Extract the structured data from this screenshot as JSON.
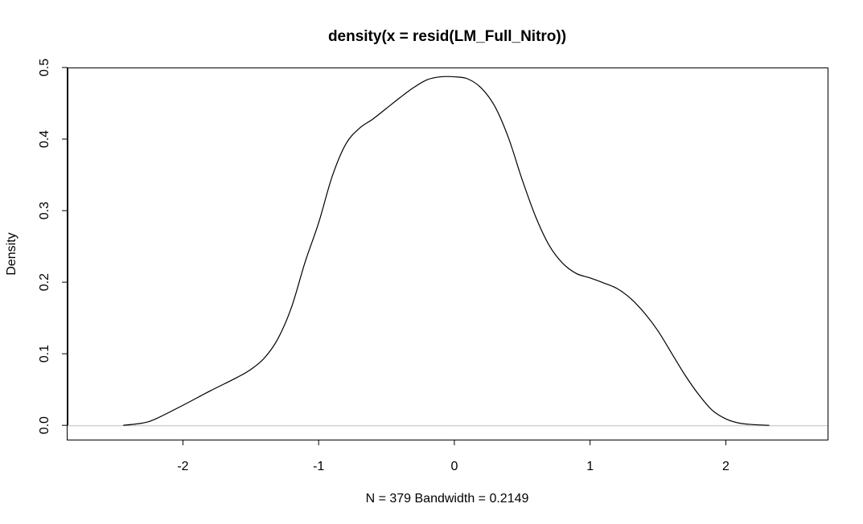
{
  "chart_data": {
    "type": "line",
    "title": "density(x = resid(LM_Full_Nitro))",
    "xlabel": "N = 379   Bandwidth = 0.2149",
    "ylabel": "Density",
    "xlim": [
      -2.85,
      2.75
    ],
    "ylim": [
      -0.02,
      0.5
    ],
    "x_ticks": [
      -2,
      -1,
      0,
      1,
      2
    ],
    "x_tick_labels": [
      "-2",
      "-1",
      "0",
      "1",
      "2"
    ],
    "y_ticks": [
      0.0,
      0.1,
      0.2,
      0.3,
      0.4,
      0.5
    ],
    "y_tick_labels": [
      "0.0",
      "0.1",
      "0.2",
      "0.3",
      "0.4",
      "0.5"
    ],
    "baseline": 0.0,
    "baseline_color": "#bebebe",
    "line_color": "#000000",
    "grid": false,
    "legend": "none",
    "series": [
      {
        "x": [
          -2.44,
          -2.3,
          -2.2,
          -2.0,
          -1.8,
          -1.6,
          -1.5,
          -1.4,
          -1.3,
          -1.2,
          -1.1,
          -1.0,
          -0.9,
          -0.8,
          -0.7,
          -0.6,
          -0.5,
          -0.4,
          -0.3,
          -0.2,
          -0.1,
          0.0,
          0.1,
          0.2,
          0.3,
          0.4,
          0.5,
          0.6,
          0.7,
          0.8,
          0.9,
          1.0,
          1.1,
          1.2,
          1.3,
          1.4,
          1.5,
          1.6,
          1.7,
          1.8,
          1.9,
          2.0,
          2.1,
          2.2,
          2.32
        ],
        "y": [
          0.0,
          0.003,
          0.009,
          0.028,
          0.048,
          0.067,
          0.078,
          0.094,
          0.121,
          0.165,
          0.228,
          0.283,
          0.348,
          0.393,
          0.415,
          0.428,
          0.443,
          0.458,
          0.472,
          0.483,
          0.487,
          0.487,
          0.484,
          0.471,
          0.445,
          0.401,
          0.343,
          0.291,
          0.251,
          0.226,
          0.212,
          0.206,
          0.199,
          0.191,
          0.177,
          0.157,
          0.132,
          0.101,
          0.07,
          0.043,
          0.021,
          0.009,
          0.003,
          0.001,
          0.0
        ]
      }
    ]
  }
}
